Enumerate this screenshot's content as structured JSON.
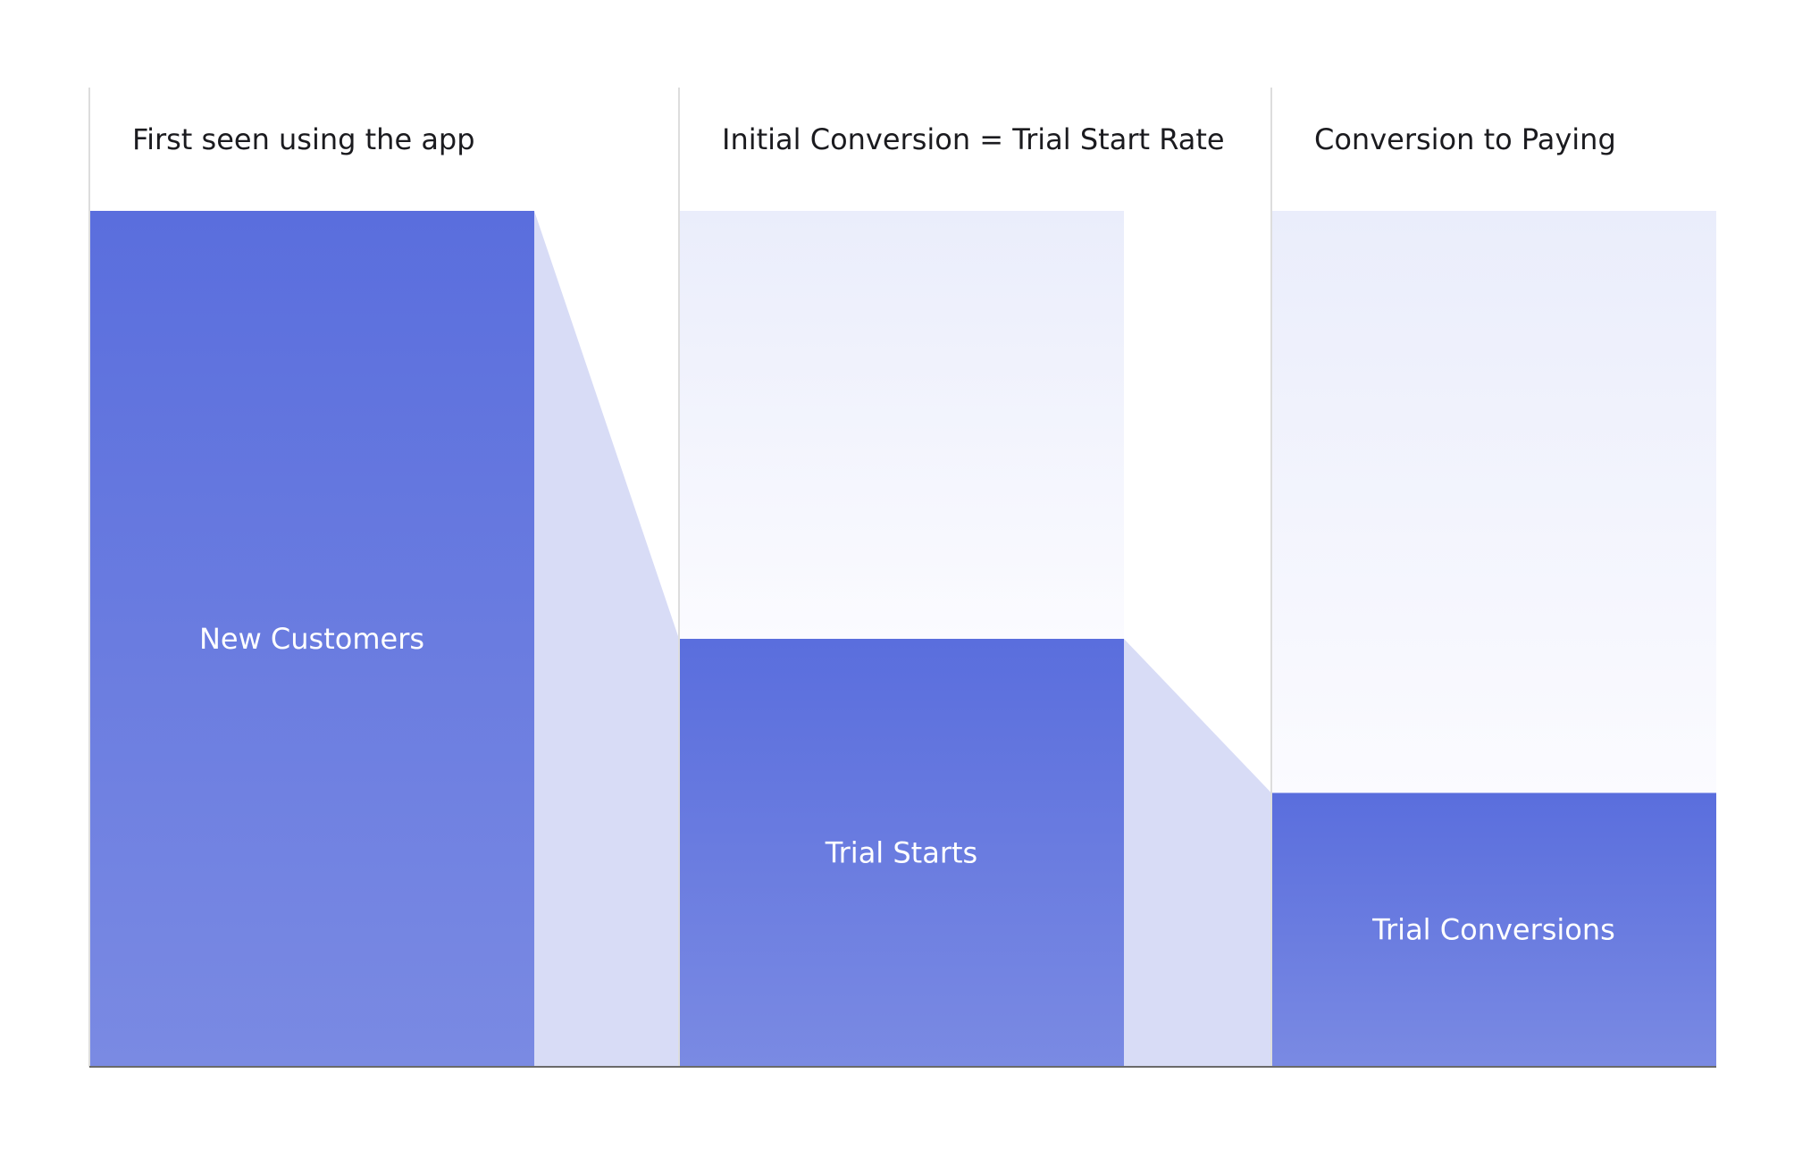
{
  "chart_data": {
    "type": "bar",
    "subtype": "funnel",
    "stages": [
      {
        "title": "First seen using the app",
        "label": "New Customers",
        "value": 100
      },
      {
        "title": "Initial Conversion = Trial Start Rate",
        "label": "Trial Starts",
        "value": 50
      },
      {
        "title": "Conversion to Paying",
        "label": "Trial Conversions",
        "value": 32
      }
    ],
    "ylim": [
      0,
      100
    ],
    "grid": false,
    "legend": "none",
    "colors": {
      "bar_top": "#5a6edd",
      "bar_bottom": "#7a8ae3",
      "ghost_top": "#eaedfb",
      "ghost_bottom": "#fbfbff",
      "connector": "#d8dcf6",
      "divider": "#dddddd",
      "axis": "#6a6a6a",
      "title_text": "#1b1b1f",
      "bar_text": "#ffffff"
    }
  }
}
